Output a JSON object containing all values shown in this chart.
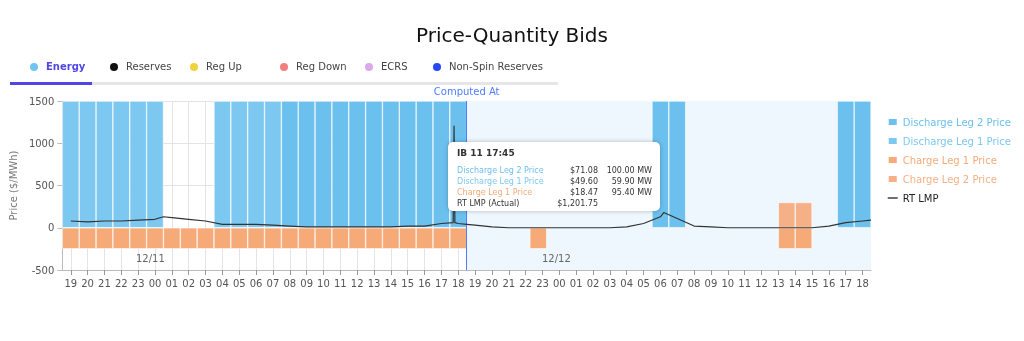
{
  "chart_data": {
    "type": "bar",
    "title": "Price-Quantity Bids",
    "ylabel": "Price ($/MWh)",
    "xlim": [
      18.5,
      66.5
    ],
    "xticks": [
      {
        "value": 19,
        "label": "19"
      },
      {
        "value": 20,
        "label": "20"
      },
      {
        "value": 21,
        "label": "21"
      },
      {
        "value": 22,
        "label": "22"
      },
      {
        "value": 23,
        "label": "23"
      },
      {
        "value": 24,
        "label": "00"
      },
      {
        "value": 25,
        "label": "01"
      },
      {
        "value": 26,
        "label": "02"
      },
      {
        "value": 27,
        "label": "03"
      },
      {
        "value": 28,
        "label": "04"
      },
      {
        "value": 29,
        "label": "05"
      },
      {
        "value": 30,
        "label": "06"
      },
      {
        "value": 31,
        "label": "07"
      },
      {
        "value": 32,
        "label": "08"
      },
      {
        "value": 33,
        "label": "09"
      },
      {
        "value": 34,
        "label": "10"
      },
      {
        "value": 35,
        "label": "11"
      },
      {
        "value": 36,
        "label": "12"
      },
      {
        "value": 37,
        "label": "13"
      },
      {
        "value": 38,
        "label": "14"
      },
      {
        "value": 39,
        "label": "15"
      },
      {
        "value": 40,
        "label": "16"
      },
      {
        "value": 41,
        "label": "17"
      },
      {
        "value": 42,
        "label": "18"
      },
      {
        "value": 43,
        "label": "19"
      },
      {
        "value": 44,
        "label": "20"
      },
      {
        "value": 45,
        "label": "21"
      },
      {
        "value": 46,
        "label": "22"
      },
      {
        "value": 47,
        "label": "23"
      },
      {
        "value": 48,
        "label": "00"
      },
      {
        "value": 49,
        "label": "01"
      },
      {
        "value": 50,
        "label": "02"
      },
      {
        "value": 51,
        "label": "03"
      },
      {
        "value": 52,
        "label": "04"
      },
      {
        "value": 53,
        "label": "05"
      },
      {
        "value": 54,
        "label": "06"
      },
      {
        "value": 55,
        "label": "07"
      },
      {
        "value": 56,
        "label": "08"
      },
      {
        "value": 57,
        "label": "09"
      },
      {
        "value": 58,
        "label": "10"
      },
      {
        "value": 59,
        "label": "11"
      },
      {
        "value": 60,
        "label": "12"
      },
      {
        "value": 61,
        "label": "13"
      },
      {
        "value": 62,
        "label": "14"
      },
      {
        "value": 63,
        "label": "15"
      },
      {
        "value": 64,
        "label": "16"
      },
      {
        "value": 65,
        "label": "17"
      },
      {
        "value": 66,
        "label": "18"
      }
    ],
    "ylim": [
      -500,
      1500
    ],
    "yticks": [
      -500,
      0,
      500,
      1000,
      1500
    ],
    "grid": true,
    "legend": "right",
    "marker": "none",
    "line_style": "solid",
    "series": [
      {
        "name": "Discharge Leg 2 Price",
        "color": "#6cc0ee",
        "x": [
          32,
          33,
          34,
          35,
          36,
          37,
          38,
          39,
          40,
          41,
          42,
          54,
          55,
          65,
          66
        ],
        "values": [
          1500,
          1500,
          1500,
          1500,
          1500,
          1500,
          1500,
          1500,
          1500,
          1500,
          1500,
          1500,
          1500,
          1500,
          1500
        ]
      },
      {
        "name": "Discharge Leg 1 Price",
        "color": "#7cc8f0",
        "x": [
          19,
          20,
          21,
          22,
          23,
          24,
          28,
          29,
          30,
          31
        ],
        "values": [
          1500,
          1500,
          1500,
          1500,
          1500,
          1500,
          1500,
          1500,
          1500,
          1500
        ]
      },
      {
        "name": "Charge Leg 1 Price",
        "color": "#f5aa78",
        "x": [
          19,
          20,
          21,
          22,
          23,
          24,
          25,
          26,
          27,
          28,
          29,
          30,
          31,
          32,
          33,
          34,
          35,
          36,
          37,
          38,
          39,
          40,
          41,
          42,
          46.75,
          61.5,
          62.5
        ],
        "values": [
          -250,
          -250,
          -250,
          -250,
          -250,
          -250,
          -250,
          -250,
          -250,
          -250,
          -250,
          -250,
          -250,
          -250,
          -250,
          -250,
          -250,
          -250,
          -250,
          -250,
          -250,
          -250,
          -250,
          -250,
          -250,
          -250,
          -250
        ]
      },
      {
        "name": "Charge Leg 2 Price",
        "color": "#f5b088",
        "x": [
          61.5,
          62.5
        ],
        "values": [
          300,
          300
        ]
      },
      {
        "name": "RT LMP",
        "type": "line",
        "color": "#333333",
        "x": [
          19,
          20,
          21,
          22,
          23,
          24,
          24.5,
          25,
          26,
          27,
          28,
          29,
          30,
          31,
          32,
          33,
          34,
          35,
          36,
          37,
          38,
          39,
          40,
          41,
          41.7,
          41.75,
          41.8,
          42,
          42.5,
          43,
          44,
          45,
          46,
          47,
          48,
          49,
          50,
          51,
          52,
          53,
          54,
          54.2,
          55,
          56,
          57,
          58,
          59,
          60,
          61,
          62,
          63,
          64,
          65,
          66,
          66.5
        ],
        "values": [
          80,
          70,
          80,
          80,
          90,
          100,
          130,
          120,
          100,
          80,
          40,
          40,
          40,
          30,
          20,
          10,
          10,
          10,
          10,
          10,
          10,
          20,
          20,
          50,
          60,
          1201.75,
          60,
          50,
          40,
          30,
          10,
          0,
          0,
          0,
          0,
          0,
          0,
          0,
          10,
          50,
          130,
          180,
          110,
          20,
          10,
          0,
          0,
          0,
          0,
          0,
          0,
          20,
          60,
          80,
          90
        ]
      }
    ],
    "bands": [
      {
        "axis": "x",
        "from": 42.5,
        "to": 66.5,
        "color": "#eef7fd"
      }
    ],
    "ref_lines": [
      {
        "axis": "x",
        "value": 42.5,
        "label": "Computed At",
        "color": "#4f7cff"
      }
    ],
    "annotations": [
      "Energy",
      "Reserves",
      "Reg Up",
      "Reg Down",
      "ECRS",
      "Non-Spin Reserves",
      "12/11",
      "12/12",
      "IB 11 17:45",
      "Discharge Leg 2 Price",
      "$71.08",
      "100.00 MW",
      "Discharge Leg 1 Price",
      "$49.60",
      "59.90 MW",
      "Charge Leg 1 Price",
      "$18.47",
      "95.40 MW",
      "RT LMP (Actual)",
      "$1,201.75"
    ]
  }
}
